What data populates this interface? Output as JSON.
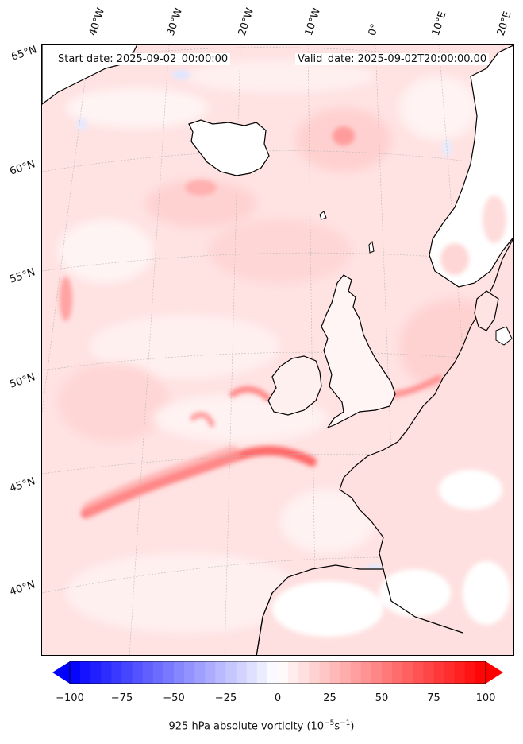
{
  "header": {
    "start_date": "Start date: 2025-09-02_00:00:00",
    "valid_date": "Valid_date: 2025-09-02T20:00:00.00"
  },
  "graticule": {
    "lon_labels": [
      "40°W",
      "30°W",
      "20°W",
      "10°W",
      "0°",
      "10°E",
      "20°E"
    ],
    "lat_labels": [
      "65°N",
      "60°N",
      "55°N",
      "50°N",
      "45°N",
      "40°N"
    ]
  },
  "colorbar": {
    "ticks": [
      "−100",
      "−75",
      "−50",
      "−25",
      "0",
      "25",
      "50",
      "75",
      "100"
    ],
    "label": "925 hPa absolute vorticity (10",
    "label_exp1": "−5",
    "label_mid": "s",
    "label_exp2": "−1",
    "label_end": ")",
    "min": -100,
    "max": 100,
    "low_color": "#0000ff",
    "mid_color": "#ffffff",
    "high_color": "#ff0000",
    "extend": "both"
  },
  "map": {
    "projection": "conic",
    "field": "925 hPa absolute vorticity",
    "coastline_color": "#000000",
    "gridline_color": "#b0b0b0"
  }
}
